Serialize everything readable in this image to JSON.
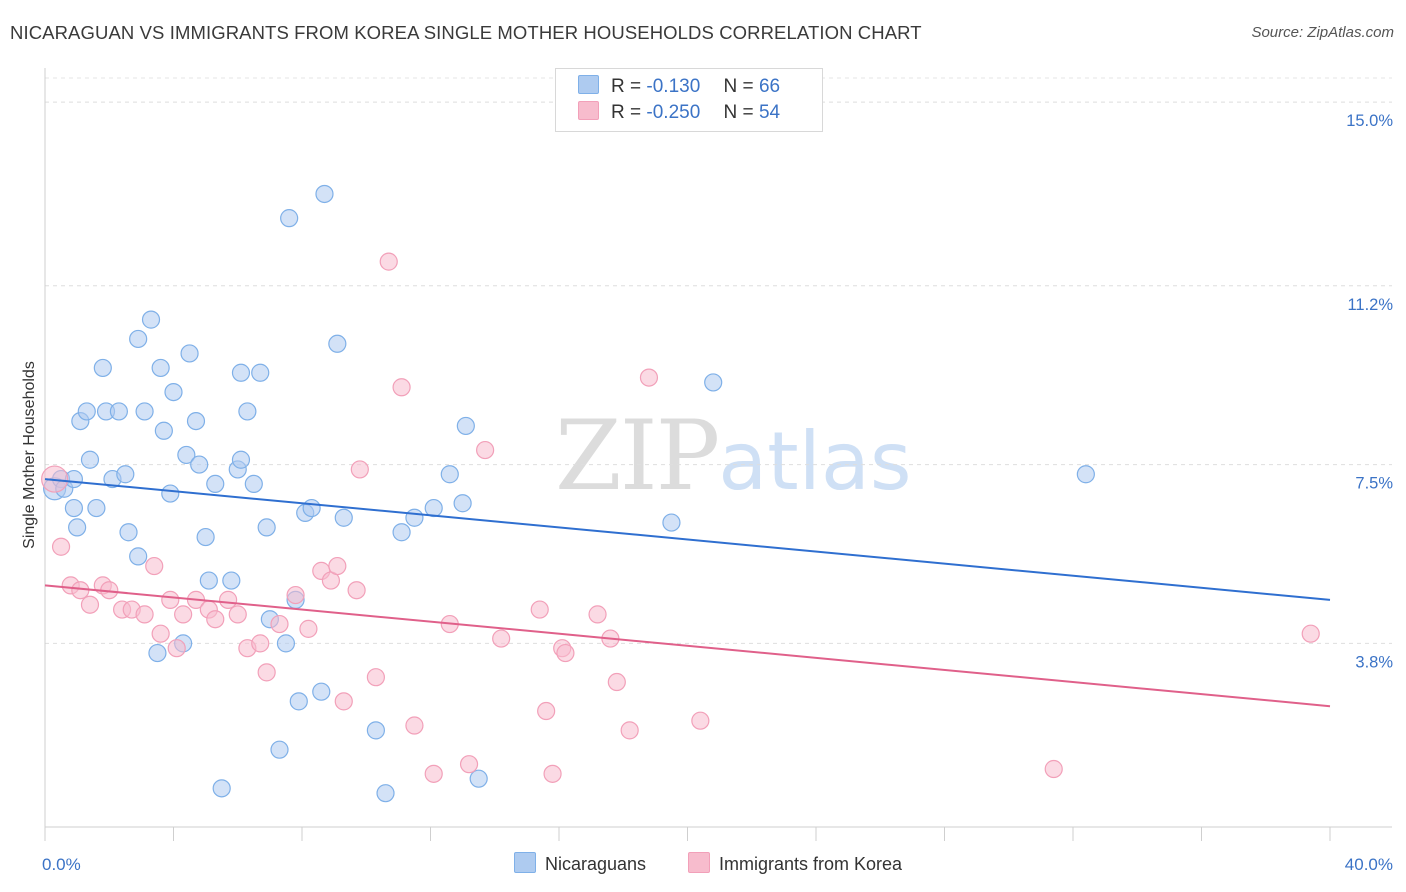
{
  "header": {
    "title": "NICARAGUAN VS IMMIGRANTS FROM KOREA SINGLE MOTHER HOUSEHOLDS CORRELATION CHART",
    "source": "Source: ZipAtlas.com"
  },
  "watermark": {
    "zip": "ZIP",
    "atlas": "atlas"
  },
  "legend": {
    "rows": [
      {
        "r_label": "R =",
        "r_value": "-0.130",
        "n_label": "N =",
        "n_value": "66",
        "color": "#aecbf0"
      },
      {
        "r_label": "R =",
        "r_value": "-0.250",
        "n_label": "N =",
        "n_value": "54",
        "color": "#f7bccd"
      }
    ]
  },
  "bottom_legend": {
    "items": [
      {
        "label": "Nicaraguans",
        "color": "#aecbf0"
      },
      {
        "label": "Immigrants from Korea",
        "color": "#f7bccd"
      }
    ]
  },
  "chart_data": {
    "type": "scatter",
    "title": "NICARAGUAN VS IMMIGRANTS FROM KOREA SINGLE MOTHER HOUSEHOLDS CORRELATION CHART",
    "xlabel": "",
    "ylabel": "Single Mother Households",
    "xlim": [
      0,
      40
    ],
    "ylim": [
      0,
      15.5
    ],
    "x_tick_labels": [
      "0.0%",
      "40.0%"
    ],
    "y_ticks": [
      3.8,
      7.5,
      11.2,
      15.0
    ],
    "y_tick_labels": [
      "3.8%",
      "7.5%",
      "11.2%",
      "15.0%"
    ],
    "grid": "horizontal dashed",
    "legend_placement": "top-center",
    "series": [
      {
        "name": "Nicaraguans",
        "color": "#7fb0e8",
        "fill": "#aecbf0",
        "line_color": "#2f6fd0",
        "trend": {
          "x0": 0,
          "y0": 7.2,
          "x1": 40,
          "y1": 4.7
        },
        "points": [
          [
            0.3,
            7.0
          ],
          [
            0.5,
            7.2
          ],
          [
            0.6,
            7.0
          ],
          [
            0.9,
            7.2
          ],
          [
            0.9,
            6.6
          ],
          [
            1.0,
            6.2
          ],
          [
            1.1,
            8.4
          ],
          [
            1.3,
            8.6
          ],
          [
            1.4,
            7.6
          ],
          [
            1.6,
            6.6
          ],
          [
            1.8,
            9.5
          ],
          [
            1.9,
            8.6
          ],
          [
            2.1,
            7.2
          ],
          [
            2.3,
            8.6
          ],
          [
            2.5,
            7.3
          ],
          [
            2.6,
            6.1
          ],
          [
            2.9,
            5.6
          ],
          [
            2.9,
            10.1
          ],
          [
            3.1,
            8.6
          ],
          [
            3.3,
            10.5
          ],
          [
            3.5,
            3.6
          ],
          [
            3.6,
            9.5
          ],
          [
            3.7,
            8.2
          ],
          [
            3.9,
            6.9
          ],
          [
            4.0,
            9.0
          ],
          [
            4.3,
            3.8
          ],
          [
            4.4,
            7.7
          ],
          [
            4.5,
            9.8
          ],
          [
            4.7,
            8.4
          ],
          [
            4.8,
            7.5
          ],
          [
            5.0,
            6.0
          ],
          [
            5.1,
            5.1
          ],
          [
            5.3,
            7.1
          ],
          [
            5.5,
            0.8
          ],
          [
            5.8,
            5.1
          ],
          [
            6.0,
            7.4
          ],
          [
            6.1,
            9.4
          ],
          [
            6.1,
            7.6
          ],
          [
            6.3,
            8.6
          ],
          [
            6.5,
            7.1
          ],
          [
            6.7,
            9.4
          ],
          [
            6.9,
            6.2
          ],
          [
            7.0,
            4.3
          ],
          [
            7.3,
            1.6
          ],
          [
            7.5,
            3.8
          ],
          [
            7.6,
            12.6
          ],
          [
            7.8,
            4.7
          ],
          [
            7.9,
            2.6
          ],
          [
            8.1,
            6.5
          ],
          [
            8.3,
            6.6
          ],
          [
            8.6,
            2.8
          ],
          [
            8.7,
            13.1
          ],
          [
            9.1,
            10.0
          ],
          [
            9.3,
            6.4
          ],
          [
            10.3,
            2.0
          ],
          [
            10.6,
            0.7
          ],
          [
            11.1,
            6.1
          ],
          [
            11.5,
            6.4
          ],
          [
            12.1,
            6.6
          ],
          [
            12.6,
            7.3
          ],
          [
            13.0,
            6.7
          ],
          [
            13.1,
            8.3
          ],
          [
            13.5,
            1.0
          ],
          [
            19.5,
            6.3
          ],
          [
            20.8,
            9.2
          ],
          [
            32.4,
            7.3
          ]
        ]
      },
      {
        "name": "Immigrants from Korea",
        "color": "#f2a0b9",
        "fill": "#f7bccd",
        "line_color": "#e0608a",
        "trend": {
          "x0": 0,
          "y0": 5.0,
          "x1": 40,
          "y1": 2.5
        },
        "points": [
          [
            0.3,
            7.2
          ],
          [
            0.5,
            5.8
          ],
          [
            0.8,
            5.0
          ],
          [
            1.1,
            4.9
          ],
          [
            1.4,
            4.6
          ],
          [
            1.8,
            5.0
          ],
          [
            2.0,
            4.9
          ],
          [
            2.4,
            4.5
          ],
          [
            2.7,
            4.5
          ],
          [
            3.1,
            4.4
          ],
          [
            3.4,
            5.4
          ],
          [
            3.6,
            4.0
          ],
          [
            3.9,
            4.7
          ],
          [
            4.1,
            3.7
          ],
          [
            4.3,
            4.4
          ],
          [
            4.7,
            4.7
          ],
          [
            5.1,
            4.5
          ],
          [
            5.3,
            4.3
          ],
          [
            5.7,
            4.7
          ],
          [
            6.0,
            4.4
          ],
          [
            6.3,
            3.7
          ],
          [
            6.7,
            3.8
          ],
          [
            6.9,
            3.2
          ],
          [
            7.3,
            4.2
          ],
          [
            7.8,
            4.8
          ],
          [
            8.2,
            4.1
          ],
          [
            8.6,
            5.3
          ],
          [
            8.9,
            5.1
          ],
          [
            9.1,
            5.4
          ],
          [
            9.3,
            2.6
          ],
          [
            9.7,
            4.9
          ],
          [
            9.8,
            7.4
          ],
          [
            10.3,
            3.1
          ],
          [
            10.7,
            11.7
          ],
          [
            11.1,
            9.1
          ],
          [
            11.5,
            2.1
          ],
          [
            12.1,
            1.1
          ],
          [
            12.6,
            4.2
          ],
          [
            13.2,
            1.3
          ],
          [
            13.7,
            7.8
          ],
          [
            14.2,
            3.9
          ],
          [
            15.4,
            4.5
          ],
          [
            15.6,
            2.4
          ],
          [
            15.8,
            1.1
          ],
          [
            16.1,
            3.7
          ],
          [
            16.2,
            3.6
          ],
          [
            17.2,
            4.4
          ],
          [
            17.6,
            3.9
          ],
          [
            17.8,
            3.0
          ],
          [
            18.2,
            2.0
          ],
          [
            18.8,
            9.3
          ],
          [
            20.4,
            2.2
          ],
          [
            31.4,
            1.2
          ],
          [
            39.4,
            4.0
          ]
        ]
      }
    ]
  }
}
